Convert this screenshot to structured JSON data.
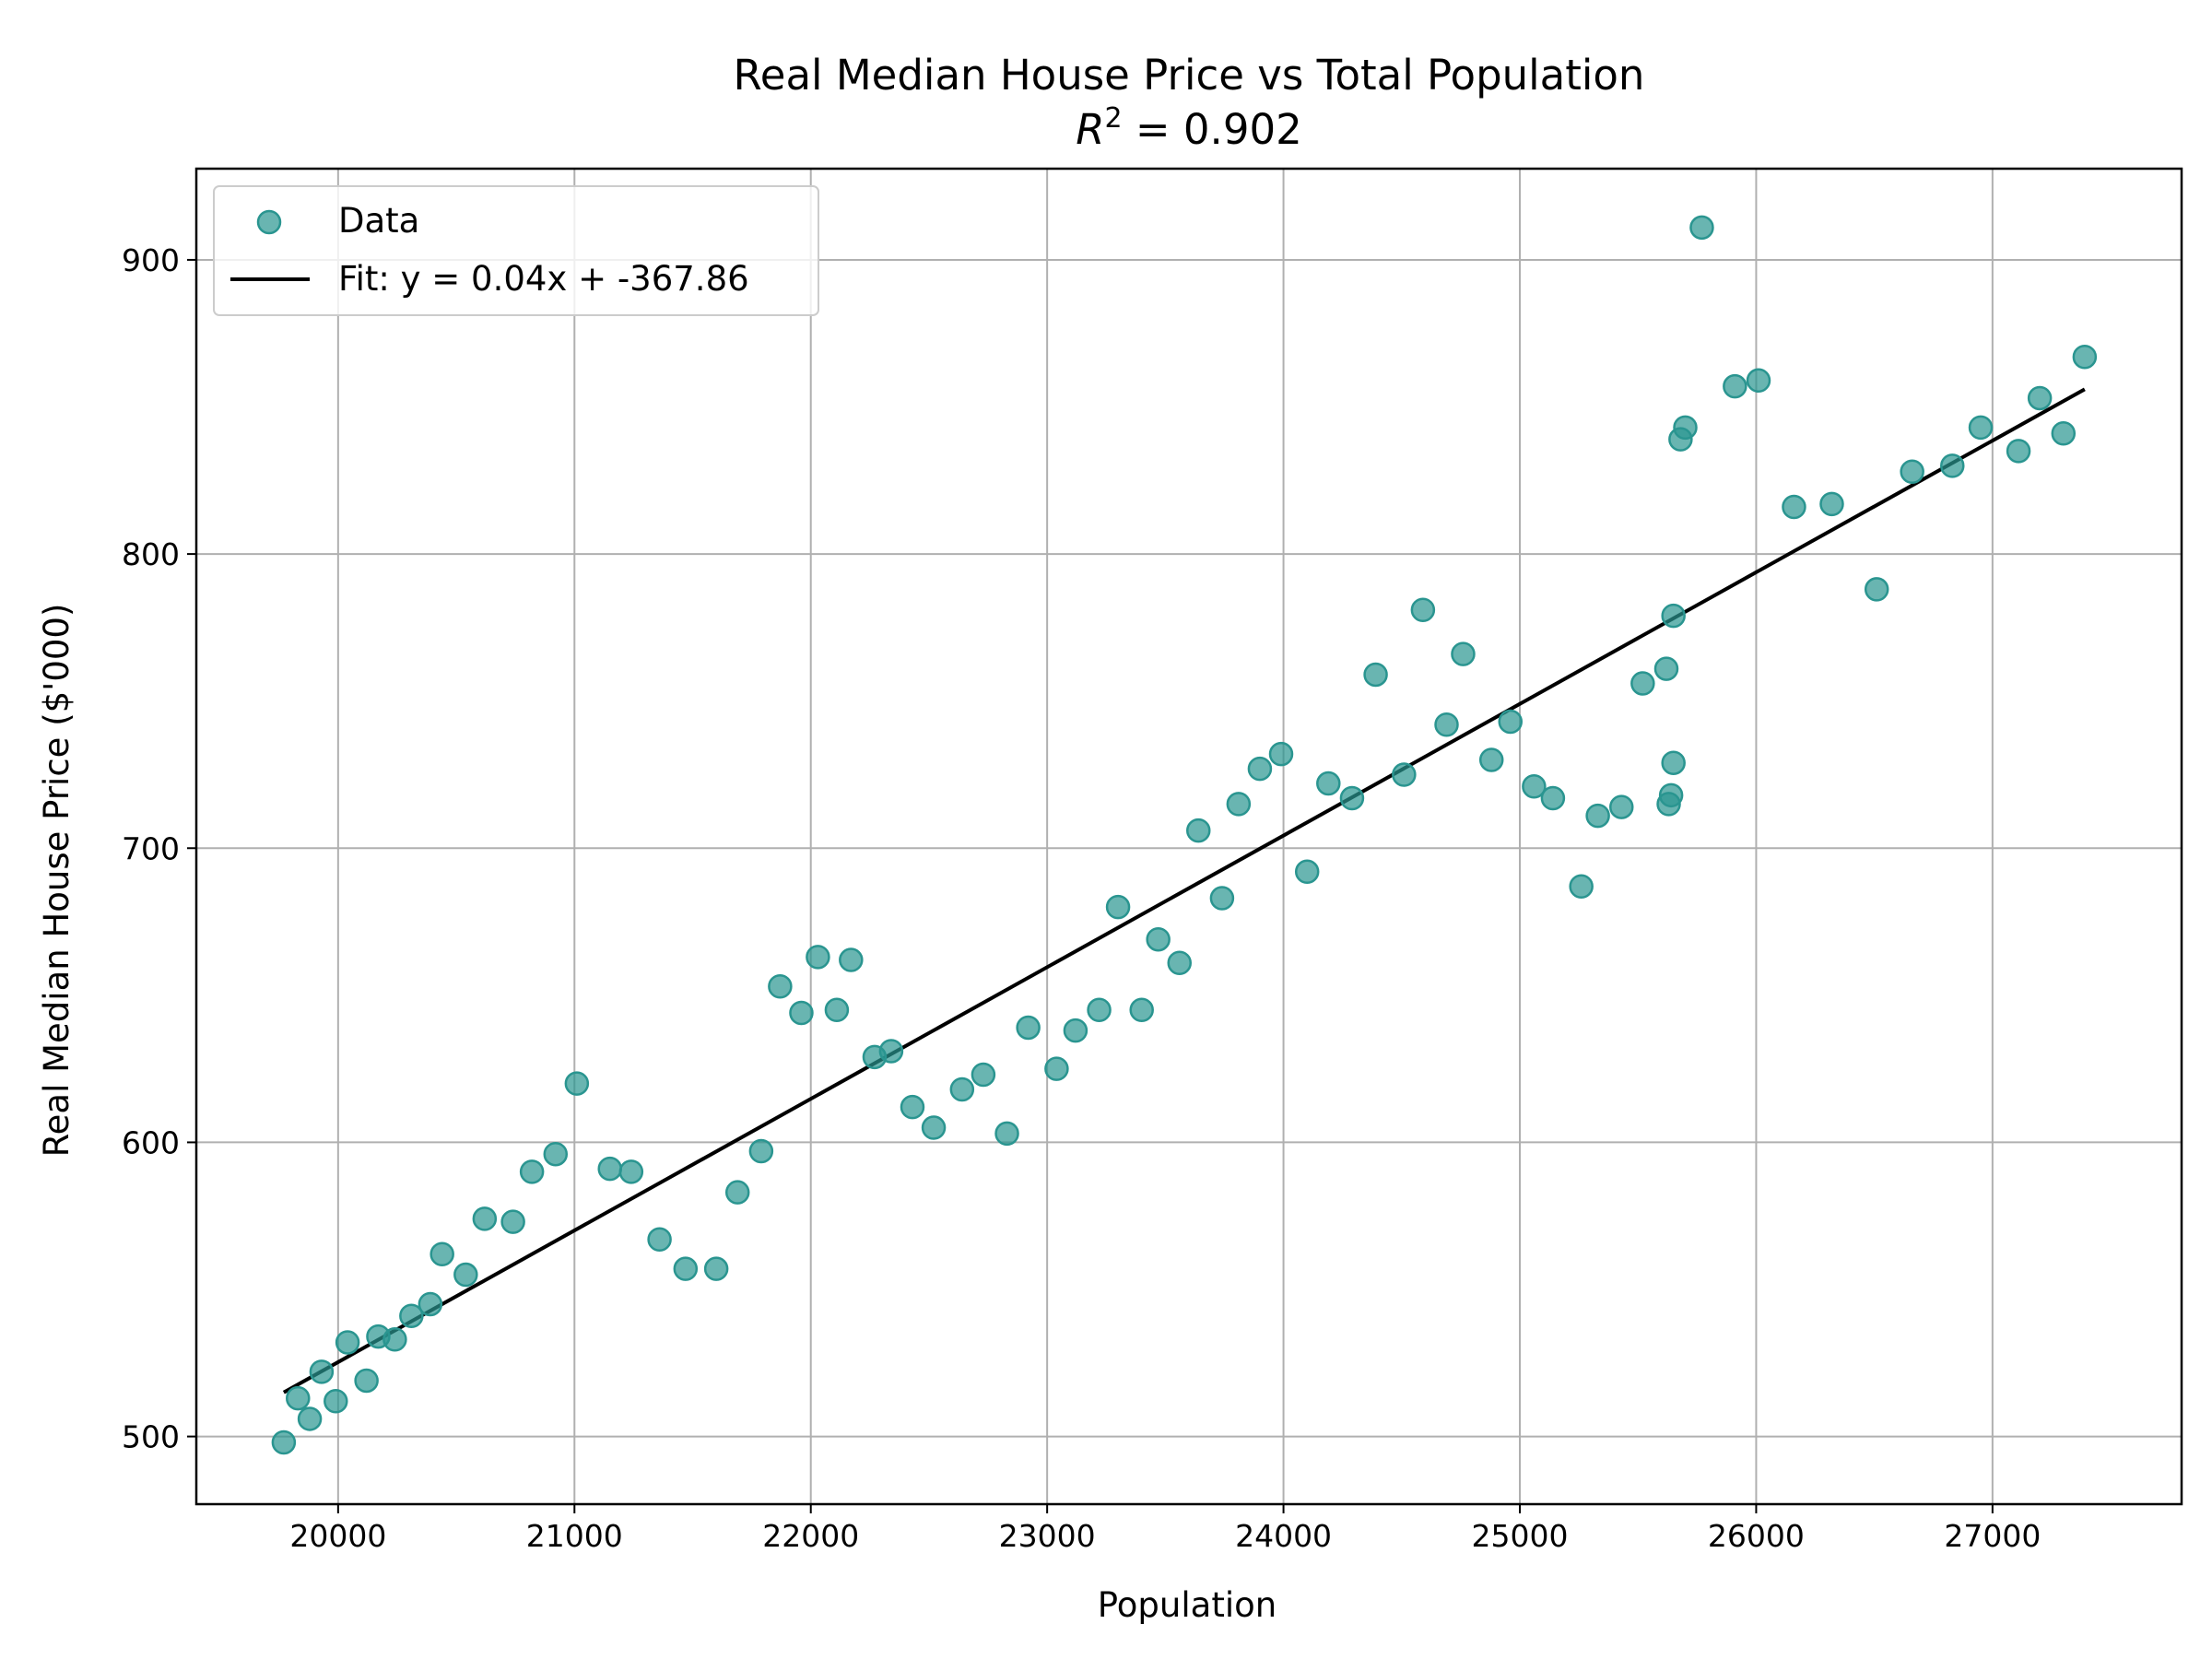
{
  "chart_data": {
    "type": "scatter",
    "title": "Real Median House Price vs Total Population",
    "subtitle_prefix": "R",
    "subtitle_superscript": "2",
    "subtitle_suffix": " = 0.902",
    "xlabel": "Population",
    "ylabel": "Real Median House Price ($'000)",
    "xlim": [
      19400,
      27800
    ],
    "ylim": [
      477,
      931
    ],
    "xticks": [
      20000,
      21000,
      22000,
      23000,
      24000,
      25000,
      26000,
      27000
    ],
    "yticks": [
      500,
      600,
      700,
      800,
      900
    ],
    "grid": true,
    "legend_position": "top-left",
    "colors": {
      "points": "#2a9590",
      "fit": "#000000"
    },
    "series": [
      {
        "name": "Data",
        "kind": "scatter",
        "x": [
          19770,
          19830,
          19880,
          19930,
          19990,
          20040,
          20120,
          20170,
          20240,
          20310,
          20390,
          20440,
          20540,
          20620,
          20740,
          20820,
          20920,
          21010,
          21150,
          21240,
          21360,
          21470,
          21600,
          21690,
          21790,
          21870,
          21960,
          22030,
          22110,
          22170,
          22270,
          22340,
          22430,
          22520,
          22640,
          22730,
          22830,
          22920,
          23040,
          23120,
          23220,
          23300,
          23400,
          23470,
          23560,
          23640,
          23740,
          23810,
          23900,
          23990,
          24100,
          24190,
          24290,
          24390,
          24510,
          24590,
          24690,
          24760,
          24880,
          24960,
          25060,
          25140,
          25260,
          25330,
          25430,
          25520,
          25620,
          25630,
          25640,
          25650,
          25650,
          25680,
          25700,
          25770,
          25910,
          26010,
          26160,
          26320,
          26510,
          26660,
          26830,
          26950,
          27110,
          27200,
          27300,
          27390
        ],
        "y": [
          498,
          513,
          506,
          522,
          512,
          532,
          519,
          534,
          533,
          541,
          545,
          562,
          555,
          574,
          573,
          590,
          596,
          620,
          591,
          590,
          567,
          557,
          557,
          583,
          597,
          653,
          644,
          663,
          645,
          662,
          629,
          631,
          612,
          605,
          618,
          623,
          603,
          639,
          625,
          638,
          645,
          680,
          645,
          669,
          661,
          706,
          683,
          715,
          727,
          732,
          692,
          722,
          717,
          759,
          725,
          781,
          742,
          766,
          730,
          743,
          721,
          717,
          687,
          711,
          714,
          756,
          761,
          715,
          718,
          729,
          779,
          839,
          843,
          911,
          857,
          859,
          816,
          817,
          788,
          828,
          830,
          843,
          835,
          853,
          841,
          867
        ]
      },
      {
        "name": "Fit: y = 0.04x + -367.86",
        "kind": "line",
        "x": [
          19770,
          27390
        ],
        "y": [
          515,
          856
        ]
      }
    ]
  }
}
